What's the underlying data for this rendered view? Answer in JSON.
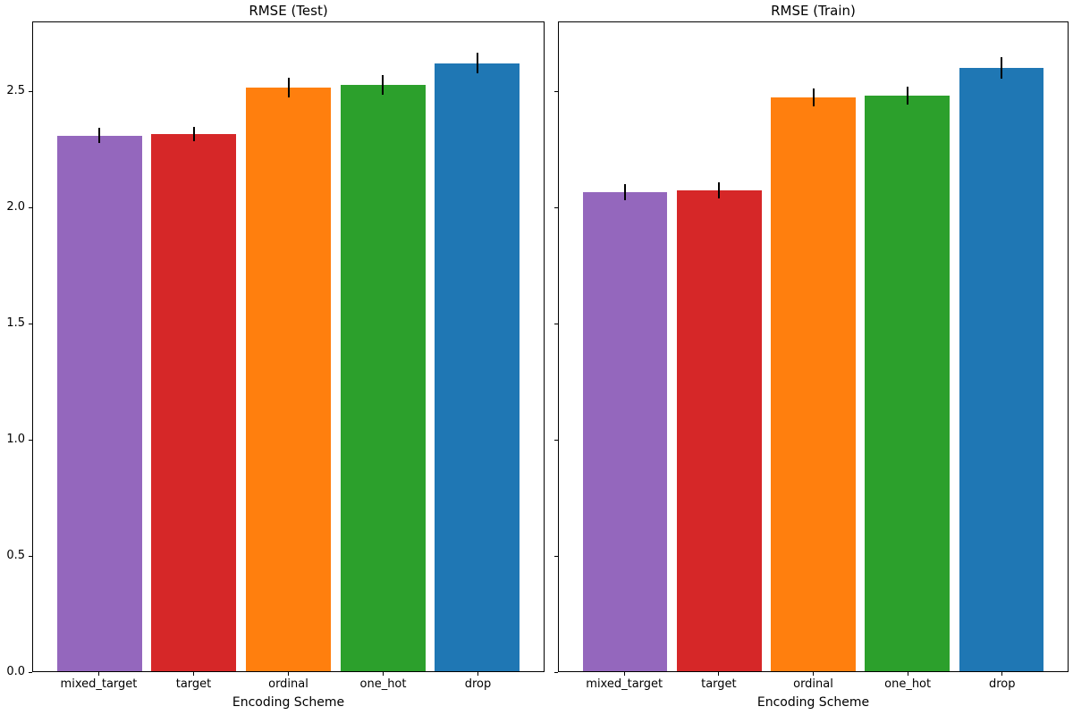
{
  "figure": {
    "background": "#ffffff",
    "error_bar_color": "#000000"
  },
  "chart_data": [
    {
      "type": "bar",
      "title": "RMSE (Test)",
      "xlabel": "Encoding Scheme",
      "ylabel": "",
      "categories": [
        "mixed_target",
        "target",
        "ordinal",
        "one_hot",
        "drop"
      ],
      "values": [
        2.312,
        2.318,
        2.519,
        2.529,
        2.624
      ],
      "errors": [
        0.033,
        0.032,
        0.042,
        0.043,
        0.044
      ],
      "bar_colors": [
        "#9467bd",
        "#d62728",
        "#ff7f0e",
        "#2ca02c",
        "#1f77b4"
      ],
      "ylim": [
        0,
        2.8
      ],
      "ytick_values": [
        0.0,
        0.5,
        1.0,
        1.5,
        2.0,
        2.5
      ],
      "ytick_labels": [
        "0.0",
        "0.5",
        "1.0",
        "1.5",
        "2.0",
        "2.5"
      ],
      "show_ytick_labels": true,
      "grid": false,
      "legend": null
    },
    {
      "type": "bar",
      "title": "RMSE (Train)",
      "xlabel": "Encoding Scheme",
      "ylabel": "",
      "categories": [
        "mixed_target",
        "target",
        "ordinal",
        "one_hot",
        "drop"
      ],
      "values": [
        2.068,
        2.075,
        2.476,
        2.484,
        2.604
      ],
      "errors": [
        0.034,
        0.033,
        0.04,
        0.04,
        0.047
      ],
      "bar_colors": [
        "#9467bd",
        "#d62728",
        "#ff7f0e",
        "#2ca02c",
        "#1f77b4"
      ],
      "ylim": [
        0,
        2.8
      ],
      "ytick_values": [
        0.0,
        0.5,
        1.0,
        1.5,
        2.0,
        2.5
      ],
      "ytick_labels": [
        "0.0",
        "0.5",
        "1.0",
        "1.5",
        "2.0",
        "2.5"
      ],
      "show_ytick_labels": false,
      "grid": false,
      "legend": null
    }
  ]
}
